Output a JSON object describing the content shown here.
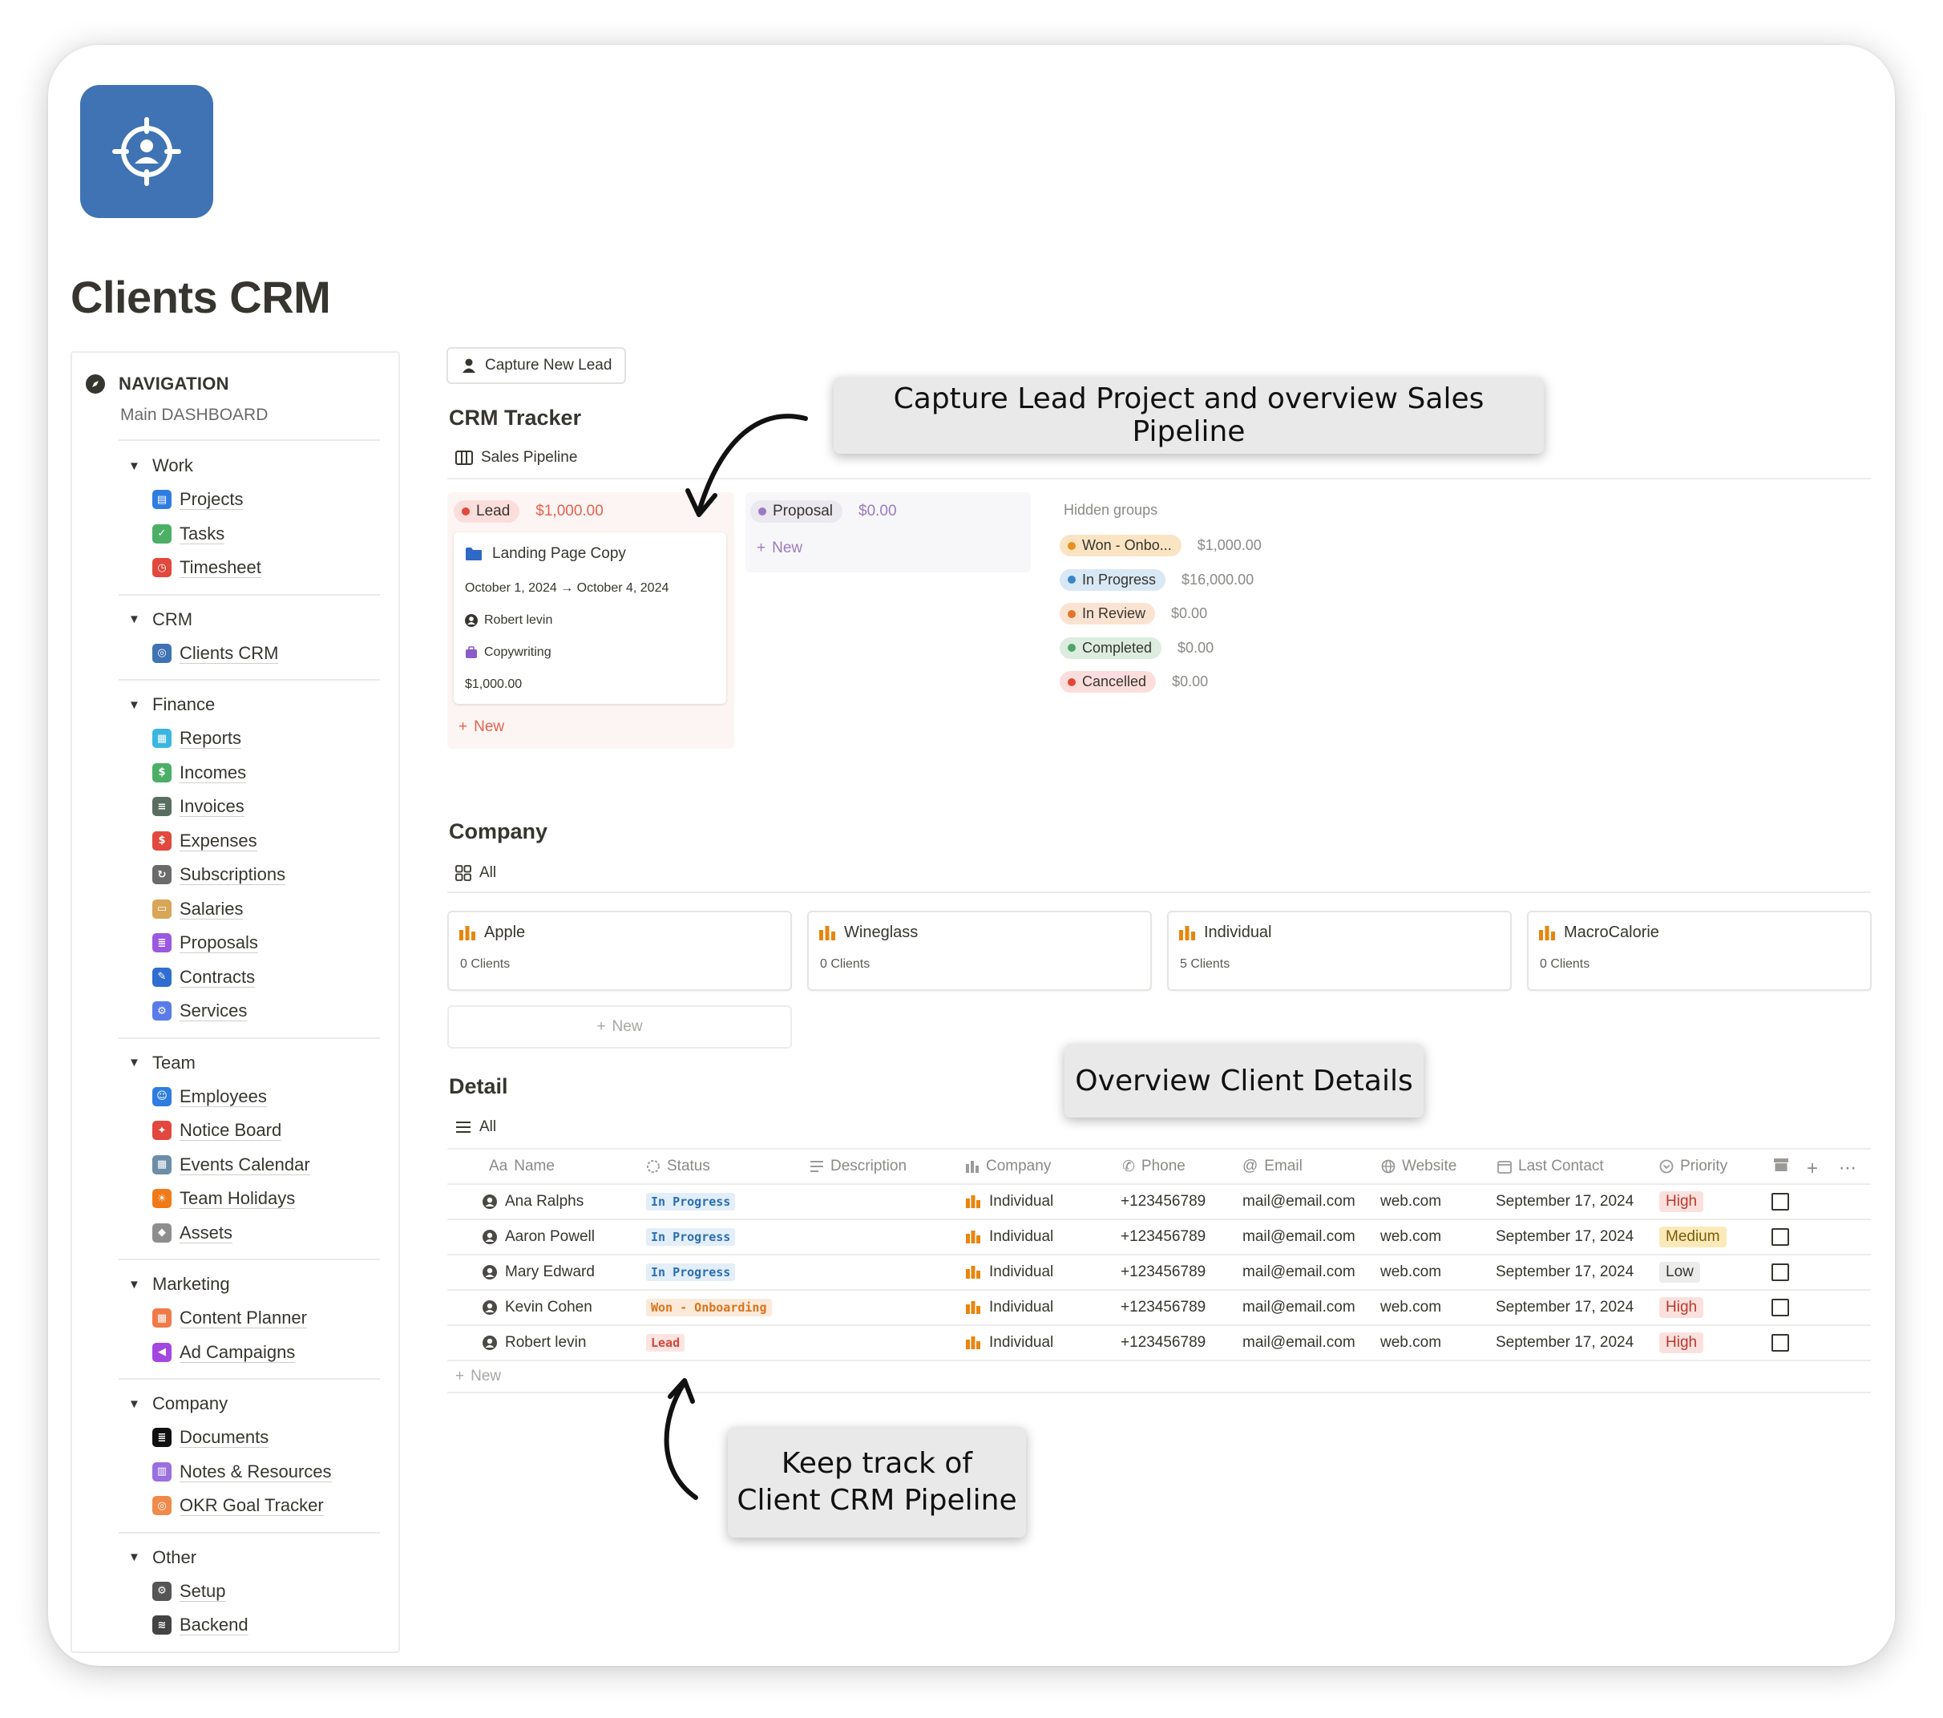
{
  "page": {
    "title": "Clients CRM"
  },
  "sidebar": {
    "heading": "NAVIGATION",
    "subheading": "Main DASHBOARD",
    "groups": [
      {
        "label": "Work",
        "items": [
          {
            "label": "Projects",
            "icon": "folder-icon",
            "color": "#2f7de1"
          },
          {
            "label": "Tasks",
            "icon": "check-icon",
            "color": "#4caf66"
          },
          {
            "label": "Timesheet",
            "icon": "clock-icon",
            "color": "#e2483d"
          }
        ]
      },
      {
        "label": "CRM",
        "items": [
          {
            "label": "Clients CRM",
            "icon": "target-icon",
            "color": "#3f73b3"
          }
        ]
      },
      {
        "label": "Finance",
        "items": [
          {
            "label": "Reports",
            "icon": "calendar-icon",
            "color": "#3bb6e0"
          },
          {
            "label": "Incomes",
            "icon": "dollar-icon",
            "color": "#4caf66"
          },
          {
            "label": "Invoices",
            "icon": "receipt-icon",
            "color": "#5a6e5f"
          },
          {
            "label": "Expenses",
            "icon": "dollar-icon",
            "color": "#e2483d"
          },
          {
            "label": "Subscriptions",
            "icon": "refresh-icon",
            "color": "#6b6b6b"
          },
          {
            "label": "Salaries",
            "icon": "wallet-icon",
            "color": "#d8a657"
          },
          {
            "label": "Proposals",
            "icon": "document-icon",
            "color": "#9b59e0"
          },
          {
            "label": "Contracts",
            "icon": "contract-icon",
            "color": "#2f6ed0"
          },
          {
            "label": "Services",
            "icon": "gear-icon",
            "color": "#5b7be8"
          }
        ]
      },
      {
        "label": "Team",
        "items": [
          {
            "label": "Employees",
            "icon": "people-icon",
            "color": "#2f7de1"
          },
          {
            "label": "Notice Board",
            "icon": "pin-icon",
            "color": "#e2483d"
          },
          {
            "label": "Events Calendar",
            "icon": "calendar-icon",
            "color": "#6c8ea6"
          },
          {
            "label": "Team Holidays",
            "icon": "sun-icon",
            "color": "#f07a1a"
          },
          {
            "label": "Assets",
            "icon": "tag-icon",
            "color": "#8e8e8e"
          }
        ]
      },
      {
        "label": "Marketing",
        "items": [
          {
            "label": "Content Planner",
            "icon": "calendar-icon",
            "color": "#f07a4a"
          },
          {
            "label": "Ad Campaigns",
            "icon": "megaphone-icon",
            "color": "#a347e0"
          }
        ]
      },
      {
        "label": "Company",
        "items": [
          {
            "label": "Documents",
            "icon": "document-icon",
            "color": "#111111"
          },
          {
            "label": "Notes & Resources",
            "icon": "chart-icon",
            "color": "#9b6fe0"
          },
          {
            "label": "OKR Goal Tracker",
            "icon": "target-icon",
            "color": "#f08a4a"
          }
        ]
      },
      {
        "label": "Other",
        "items": [
          {
            "label": "Setup",
            "icon": "gear-icon",
            "color": "#555555"
          },
          {
            "label": "Backend",
            "icon": "database-icon",
            "color": "#444444"
          }
        ]
      }
    ]
  },
  "toolbar": {
    "capture_label": "Capture New Lead"
  },
  "crm": {
    "title": "CRM Tracker",
    "view_label": "Sales Pipeline",
    "lead": {
      "label": "Lead",
      "amount": "$1,000.00"
    },
    "proposal": {
      "label": "Proposal",
      "amount": "$0.00"
    },
    "new_label": "New",
    "card": {
      "title": "Landing Page Copy",
      "dates": "October 1, 2024 → October 4, 2024",
      "person": "Robert levin",
      "service": "Copywriting",
      "amount": "$1,000.00"
    },
    "hidden_title": "Hidden groups",
    "hidden": [
      {
        "label": "Won - Onbo...",
        "amount": "$1,000.00",
        "bg": "#fbe4c4",
        "dot": "#e8901e"
      },
      {
        "label": "In Progress",
        "amount": "$16,000.00",
        "bg": "#d9e8f5",
        "dot": "#3a84c9"
      },
      {
        "label": "In Review",
        "amount": "$0.00",
        "bg": "#fbe3d2",
        "dot": "#e3742b"
      },
      {
        "label": "Completed",
        "amount": "$0.00",
        "bg": "#dcecdf",
        "dot": "#4ea466"
      },
      {
        "label": "Cancelled",
        "amount": "$0.00",
        "bg": "#fbdedb",
        "dot": "#e0483b"
      }
    ]
  },
  "company": {
    "title": "Company",
    "view_label": "All",
    "new_label": "New",
    "cards": [
      {
        "name": "Apple",
        "count": "0 Clients"
      },
      {
        "name": "Wineglass",
        "count": "0 Clients"
      },
      {
        "name": "Individual",
        "count": "5 Clients"
      },
      {
        "name": "MacroCalorie",
        "count": "0 Clients"
      }
    ]
  },
  "detail": {
    "title": "Detail",
    "view_label": "All",
    "new_label": "New",
    "columns": [
      "Name",
      "Status",
      "Description",
      "Company",
      "Phone",
      "Email",
      "Website",
      "Last Contact",
      "Priority"
    ],
    "name_prefix": "Aa",
    "rows": [
      {
        "name": "Ana Ralphs",
        "status": "In Progress",
        "status_kind": "blue",
        "company": "Individual",
        "phone": "+123456789",
        "email": "mail@email.com",
        "website": "web.com",
        "last": "September 17, 2024",
        "priority": "High",
        "prio_kind": "red"
      },
      {
        "name": "Aaron Powell",
        "status": "In Progress",
        "status_kind": "blue",
        "company": "Individual",
        "phone": "+123456789",
        "email": "mail@email.com",
        "website": "web.com",
        "last": "September 17, 2024",
        "priority": "Medium",
        "prio_kind": "yellow"
      },
      {
        "name": "Mary Edward",
        "status": "In Progress",
        "status_kind": "blue",
        "company": "Individual",
        "phone": "+123456789",
        "email": "mail@email.com",
        "website": "web.com",
        "last": "September 17, 2024",
        "priority": "Low",
        "prio_kind": "gray"
      },
      {
        "name": "Kevin Cohen",
        "status": "Won - Onboarding",
        "status_kind": "orange",
        "company": "Individual",
        "phone": "+123456789",
        "email": "mail@email.com",
        "website": "web.com",
        "last": "September 17, 2024",
        "priority": "High",
        "prio_kind": "red"
      },
      {
        "name": "Robert levin",
        "status": "Lead",
        "status_kind": "red",
        "company": "Individual",
        "phone": "+123456789",
        "email": "mail@email.com",
        "website": "web.com",
        "last": "September 17, 2024",
        "priority": "High",
        "prio_kind": "red"
      }
    ]
  },
  "callouts": {
    "top": "Capture Lead Project and overview Sales Pipeline",
    "middle": "Overview Client Details",
    "bottom_line1": "Keep track of",
    "bottom_line2": "Client CRM Pipeline"
  }
}
